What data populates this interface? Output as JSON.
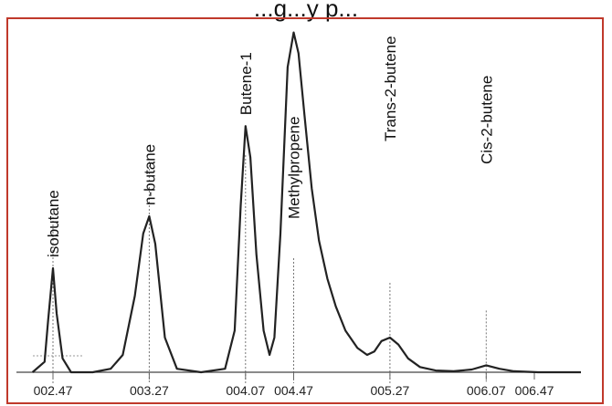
{
  "chart_data": {
    "type": "line",
    "title": "...g...y p...",
    "xlabel": "",
    "ylabel": "",
    "x_ticks": [
      "002.47",
      "003.27",
      "004.07",
      "004.47",
      "005.27",
      "006.07",
      "006.47"
    ],
    "xlim": [
      2.35,
      6.5
    ],
    "ylim": [
      0,
      100
    ],
    "grid": false,
    "legend": "none",
    "frame_color": "#c0392b",
    "line_color": "#222222",
    "series": [
      {
        "x": [
          2.3,
          2.4,
          2.43,
          2.47,
          2.5,
          2.55,
          2.62,
          2.8,
          2.95,
          3.05,
          3.15,
          3.22,
          3.27,
          3.32,
          3.4,
          3.5,
          3.7,
          3.9,
          3.98,
          4.03,
          4.07,
          4.11,
          4.16,
          4.22,
          4.27,
          4.31,
          4.36,
          4.42,
          4.47,
          4.51,
          4.56,
          4.62,
          4.68,
          4.75,
          4.82,
          4.9,
          5.0,
          5.08,
          5.14,
          5.2,
          5.27,
          5.34,
          5.42,
          5.52,
          5.65,
          5.8,
          5.95,
          6.07,
          6.18,
          6.3,
          6.5
        ],
        "y": [
          0,
          3,
          15,
          30,
          17,
          4,
          0,
          0,
          1,
          5,
          22,
          40,
          45,
          37,
          10,
          1,
          0,
          1,
          12,
          48,
          71,
          62,
          34,
          12,
          5,
          10,
          40,
          88,
          98,
          92,
          74,
          53,
          38,
          27,
          19,
          12,
          7,
          5,
          6,
          9,
          10,
          8,
          4,
          1.5,
          0.5,
          0.3,
          0.8,
          2,
          1,
          0.3,
          0
        ]
      }
    ],
    "annotations": [
      {
        "label": "isobutane",
        "x": 2.47,
        "y": 30
      },
      {
        "label": "n-butane",
        "x": 3.27,
        "y": 45
      },
      {
        "label": "Butene-1",
        "x": 4.07,
        "y": 71
      },
      {
        "label": "Methylpropene",
        "x": 4.47,
        "y": 0
      },
      {
        "label": "Trans-2-butene",
        "x": 5.27,
        "y": 10
      },
      {
        "label": "Cis-2-butene",
        "x": 6.07,
        "y": 2
      }
    ]
  }
}
